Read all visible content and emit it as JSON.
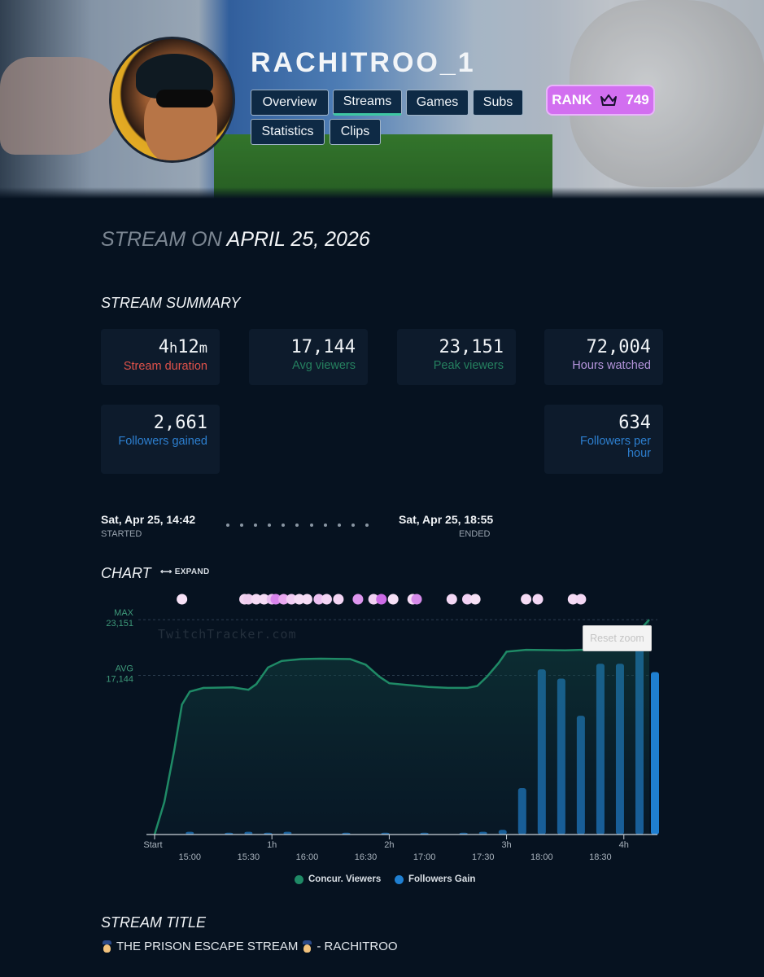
{
  "profile": {
    "username": "RACHITROO_1",
    "rank_label": "RANK",
    "rank_value": "749"
  },
  "nav": {
    "tabs": [
      {
        "label": "Overview"
      },
      {
        "label": "Streams"
      },
      {
        "label": "Games"
      },
      {
        "label": "Subs"
      },
      {
        "label": "Statistics"
      },
      {
        "label": "Clips"
      }
    ],
    "active": "Streams"
  },
  "stream_heading": {
    "prefix": "STREAM ON",
    "date": "APRIL 25, 2026"
  },
  "summary": {
    "heading": "STREAM SUMMARY",
    "cards": [
      {
        "value_num1": "4",
        "unit1": "h",
        "value_num2": "12",
        "unit2": "m",
        "label": "Stream duration",
        "color": "#e0524a"
      },
      {
        "value": "17,144",
        "label": "Avg viewers",
        "color": "#25805f"
      },
      {
        "value": "23,151",
        "label": "Peak viewers",
        "color": "#25805f"
      },
      {
        "value": "72,004",
        "label": "Hours watched",
        "color": "#b595dc"
      },
      {
        "value": "2,661",
        "label": "Followers gained",
        "color": "#2d7fcf"
      },
      {
        "value": "634",
        "label": "Followers per hour",
        "color": "#2d7fcf"
      }
    ]
  },
  "timeline": {
    "started": "Sat, Apr 25, 14:42",
    "started_label": "STARTED",
    "ended": "Sat, Apr 25, 18:55",
    "ended_label": "ENDED"
  },
  "chart_section": {
    "heading": "CHART",
    "expand_label": "EXPAND",
    "watermark": "TwitchTracker.com",
    "reset_zoom": "Reset zoom",
    "max_label": "MAX",
    "max_value": "23,151",
    "avg_label": "AVG",
    "avg_value": "17,144"
  },
  "chart_data": {
    "type": "line",
    "x_unit": "minutes since stream start (Start 14:42)",
    "xlim": [
      0,
      253
    ],
    "x_ticks_primary": [
      {
        "x": 0,
        "label": "Start"
      },
      {
        "x": 60,
        "label": "1h"
      },
      {
        "x": 120,
        "label": "2h"
      },
      {
        "x": 180,
        "label": "3h"
      },
      {
        "x": 240,
        "label": "4h"
      }
    ],
    "x_ticks_clock": [
      {
        "x": 18,
        "label": "15:00"
      },
      {
        "x": 48,
        "label": "15:30"
      },
      {
        "x": 78,
        "label": "16:00"
      },
      {
        "x": 108,
        "label": "16:30"
      },
      {
        "x": 138,
        "label": "17:00"
      },
      {
        "x": 168,
        "label": "17:30"
      },
      {
        "x": 198,
        "label": "18:00"
      },
      {
        "x": 228,
        "label": "18:30"
      }
    ],
    "ylim": [
      0,
      25000
    ],
    "series": [
      {
        "name": "Concur. Viewers",
        "kind": "area",
        "color": "#1f8a66",
        "points": [
          [
            0,
            0
          ],
          [
            5,
            3500
          ],
          [
            10,
            9000
          ],
          [
            14,
            14000
          ],
          [
            18,
            15400
          ],
          [
            25,
            15800
          ],
          [
            40,
            15850
          ],
          [
            48,
            15600
          ],
          [
            52,
            16200
          ],
          [
            58,
            18000
          ],
          [
            65,
            18700
          ],
          [
            75,
            18900
          ],
          [
            85,
            18950
          ],
          [
            100,
            18900
          ],
          [
            108,
            18300
          ],
          [
            115,
            17000
          ],
          [
            120,
            16300
          ],
          [
            130,
            16100
          ],
          [
            140,
            15900
          ],
          [
            150,
            15800
          ],
          [
            160,
            15800
          ],
          [
            165,
            16000
          ],
          [
            170,
            17000
          ],
          [
            176,
            18500
          ],
          [
            180,
            19700
          ],
          [
            190,
            19900
          ],
          [
            210,
            19850
          ],
          [
            225,
            19950
          ],
          [
            232,
            20000
          ],
          [
            236,
            20500
          ],
          [
            240,
            21200
          ],
          [
            248,
            22000
          ],
          [
            253,
            23151
          ]
        ]
      },
      {
        "name": "Followers Gain",
        "kind": "bar",
        "color": "#1f7fd1",
        "ylim": [
          0,
          250
        ],
        "points": [
          [
            18,
            3
          ],
          [
            38,
            2
          ],
          [
            48,
            3
          ],
          [
            58,
            2
          ],
          [
            68,
            3
          ],
          [
            98,
            2
          ],
          [
            118,
            2
          ],
          [
            138,
            2
          ],
          [
            158,
            2
          ],
          [
            168,
            3
          ],
          [
            178,
            5
          ],
          [
            188,
            50
          ],
          [
            198,
            178
          ],
          [
            208,
            168
          ],
          [
            218,
            128
          ],
          [
            228,
            184
          ],
          [
            238,
            184
          ],
          [
            248,
            205
          ],
          [
            258,
            175
          ]
        ]
      }
    ],
    "reference_lines": [
      {
        "label": "MAX",
        "value": 23151
      },
      {
        "label": "AVG",
        "value": 17144
      }
    ],
    "event_markers": [
      {
        "x": 14,
        "color": "#f7e2f7"
      },
      {
        "x": 46,
        "color": "#f2d6f2"
      },
      {
        "x": 48,
        "color": "#eeccee"
      },
      {
        "x": 52,
        "color": "#f5dbf5"
      },
      {
        "x": 56,
        "color": "#f5dbf5"
      },
      {
        "x": 60,
        "color": "#e9bdf0"
      },
      {
        "x": 62,
        "color": "#d884ec"
      },
      {
        "x": 66,
        "color": "#e9a8f0"
      },
      {
        "x": 70,
        "color": "#f1cdf4"
      },
      {
        "x": 74,
        "color": "#f5dcf5"
      },
      {
        "x": 78,
        "color": "#f5dcf5"
      },
      {
        "x": 84,
        "color": "#ecc0f1"
      },
      {
        "x": 88,
        "color": "#f3d5f4"
      },
      {
        "x": 94,
        "color": "#f3d5f4"
      },
      {
        "x": 104,
        "color": "#dd96ee"
      },
      {
        "x": 112,
        "color": "#f1d1f3"
      },
      {
        "x": 116,
        "color": "#cc6be6"
      },
      {
        "x": 122,
        "color": "#f6e0f6"
      },
      {
        "x": 132,
        "color": "#f5dcf5"
      },
      {
        "x": 134,
        "color": "#d58ae9"
      },
      {
        "x": 152,
        "color": "#f3d7f4"
      },
      {
        "x": 160,
        "color": "#f1d1f3"
      },
      {
        "x": 164,
        "color": "#f6e1f6"
      },
      {
        "x": 190,
        "color": "#f5dcf5"
      },
      {
        "x": 196,
        "color": "#f3d7f4"
      },
      {
        "x": 214,
        "color": "#f5dcf5"
      },
      {
        "x": 218,
        "color": "#f3d7f4"
      }
    ],
    "legend": [
      {
        "name": "Concur. Viewers",
        "color": "#1f8a66"
      },
      {
        "name": "Followers Gain",
        "color": "#1f7fd1"
      }
    ],
    "legend_position": "bottom-center",
    "grid": false
  },
  "stream_title": {
    "heading": "STREAM TITLE",
    "text": "THE PRISON ESCAPE STREAM",
    "suffix": " - RACHITROO"
  }
}
